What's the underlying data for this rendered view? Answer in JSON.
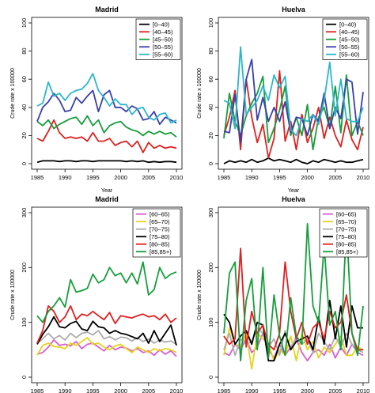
{
  "chart_data": [
    {
      "type": "line",
      "title": "Madrid",
      "xlabel": "Year",
      "ylabel": "Crude rate x 100000",
      "xlim": [
        1985,
        2010
      ],
      "ylim": [
        0,
        100
      ],
      "xticks": [
        "1985",
        "1990",
        "1995",
        "2000",
        "2005",
        "2010"
      ],
      "yticks": [
        "0",
        "20",
        "40",
        "60",
        "80",
        "100"
      ],
      "legend_position": "top-right",
      "x": [
        1985,
        1986,
        1987,
        1988,
        1989,
        1990,
        1991,
        1992,
        1993,
        1994,
        1995,
        1996,
        1997,
        1998,
        1999,
        2000,
        2001,
        2002,
        2003,
        2004,
        2005,
        2006,
        2007,
        2008,
        2009,
        2010
      ],
      "series": [
        {
          "name": "[0–40)",
          "color": "#000000",
          "values": [
            1,
            2,
            2,
            2,
            1.5,
            2,
            2,
            1.5,
            2,
            2,
            1.5,
            2,
            2,
            2,
            2,
            2,
            1.5,
            2,
            1.5,
            2,
            1,
            1.5,
            1,
            1.5,
            1.5,
            1
          ]
        },
        {
          "name": "[40–45)",
          "color": "#DF2020",
          "values": [
            18,
            16,
            23,
            31,
            22,
            18,
            19,
            18,
            19,
            16,
            22,
            16,
            16,
            18,
            13,
            15,
            16,
            12,
            16,
            8,
            15,
            11,
            13,
            11,
            12,
            11
          ]
        },
        {
          "name": "[45–50)",
          "color": "#169E3C",
          "values": [
            30,
            27,
            31,
            25,
            28,
            30,
            32,
            33,
            28,
            34,
            27,
            31,
            22,
            27,
            29,
            30,
            26,
            24,
            23,
            20,
            23,
            21,
            23,
            21,
            22,
            19
          ]
        },
        {
          "name": "[50–55)",
          "color": "#3A3FA8",
          "values": [
            30,
            40,
            44,
            50,
            45,
            37,
            38,
            47,
            43,
            48,
            52,
            37,
            49,
            52,
            40,
            40,
            37,
            41,
            39,
            31,
            32,
            37,
            28,
            33,
            31,
            29
          ]
        },
        {
          "name": "[55–60)",
          "color": "#2BB6CB",
          "values": [
            41,
            43,
            58,
            48,
            50,
            45,
            50,
            52,
            53,
            57,
            64,
            52,
            47,
            41,
            46,
            42,
            42,
            35,
            39,
            40,
            33,
            31,
            35,
            36,
            29,
            31
          ]
        }
      ]
    },
    {
      "type": "line",
      "title": "Huelva",
      "xlabel": "Year",
      "ylabel": "Crude rate x 100000",
      "xlim": [
        1985,
        2010
      ],
      "ylim": [
        0,
        100
      ],
      "xticks": [
        "1985",
        "1990",
        "1995",
        "2000",
        "2005",
        "2010"
      ],
      "yticks": [
        "0",
        "20",
        "40",
        "60",
        "80",
        "100"
      ],
      "legend_position": "top-right",
      "x": [
        1985,
        1986,
        1987,
        1988,
        1989,
        1990,
        1991,
        1992,
        1993,
        1994,
        1995,
        1996,
        1997,
        1998,
        1999,
        2000,
        2001,
        2002,
        2003,
        2004,
        2005,
        2006,
        2007,
        2008,
        2009,
        2010
      ],
      "series": [
        {
          "name": "[0–40)",
          "color": "#000000",
          "values": [
            0,
            2,
            1,
            2,
            1,
            3,
            1,
            2,
            4,
            2,
            3,
            2,
            1,
            3,
            1,
            0,
            2,
            1,
            3,
            2,
            1,
            2,
            1,
            1,
            2,
            3
          ]
        },
        {
          "name": "[40–45)",
          "color": "#DF2020",
          "values": [
            20,
            33,
            52,
            10,
            60,
            33,
            15,
            28,
            4,
            18,
            66,
            16,
            30,
            10,
            35,
            15,
            25,
            40,
            18,
            33,
            20,
            12,
            31,
            17,
            10,
            26
          ]
        },
        {
          "name": "[45–50)",
          "color": "#169E3C",
          "values": [
            18,
            50,
            30,
            20,
            34,
            43,
            50,
            62,
            15,
            25,
            38,
            55,
            20,
            33,
            20,
            42,
            10,
            33,
            40,
            25,
            55,
            22,
            63,
            20,
            30,
            20
          ]
        },
        {
          "name": "[50–55)",
          "color": "#3A3FA8",
          "values": [
            23,
            22,
            49,
            15,
            60,
            74,
            31,
            47,
            30,
            40,
            30,
            44,
            22,
            33,
            32,
            20,
            35,
            30,
            50,
            25,
            40,
            32,
            60,
            58,
            21,
            51
          ]
        },
        {
          "name": "[55–60)",
          "color": "#2BB6CB",
          "values": [
            45,
            43,
            25,
            83,
            35,
            40,
            45,
            55,
            45,
            63,
            54,
            62,
            24,
            20,
            32,
            30,
            35,
            28,
            45,
            72,
            34,
            60,
            32,
            30,
            30,
            40
          ]
        }
      ]
    },
    {
      "type": "line",
      "title": "Madrid",
      "xlabel": "Year",
      "ylabel": "Crude rate x 100000",
      "xlim": [
        1985,
        2010
      ],
      "ylim": [
        0,
        300
      ],
      "xticks": [
        "1985",
        "1990",
        "1995",
        "2000",
        "2005",
        "2010"
      ],
      "yticks": [
        "0",
        "100",
        "200",
        "300"
      ],
      "legend_position": "top-right",
      "x": [
        1985,
        1986,
        1987,
        1988,
        1989,
        1990,
        1991,
        1992,
        1993,
        1994,
        1995,
        1996,
        1997,
        1998,
        1999,
        2000,
        2001,
        2002,
        2003,
        2004,
        2005,
        2006,
        2007,
        2008,
        2009,
        2010
      ],
      "series": [
        {
          "name": "[60–65)",
          "color": "#D85FD0",
          "values": [
            42,
            45,
            55,
            68,
            58,
            60,
            57,
            65,
            52,
            60,
            62,
            55,
            48,
            58,
            50,
            55,
            53,
            48,
            52,
            45,
            48,
            40,
            50,
            42,
            48,
            38
          ]
        },
        {
          "name": "[65–70)",
          "color": "#E6D31B",
          "values": [
            40,
            58,
            62,
            56,
            55,
            52,
            62,
            58,
            65,
            72,
            60,
            62,
            55,
            50,
            57,
            60,
            52,
            45,
            55,
            50,
            45,
            52,
            48,
            52,
            50,
            45
          ]
        },
        {
          "name": "[70–75)",
          "color": "#ADADAD",
          "values": [
            62,
            70,
            80,
            70,
            76,
            68,
            80,
            72,
            80,
            82,
            77,
            85,
            70,
            74,
            68,
            73,
            72,
            66,
            72,
            65,
            70,
            62,
            68,
            64,
            66,
            60
          ]
        },
        {
          "name": "[75–80)",
          "color": "#000000",
          "values": [
            60,
            78,
            92,
            110,
            92,
            90,
            98,
            102,
            88,
            85,
            102,
            92,
            90,
            80,
            85,
            80,
            78,
            74,
            70,
            80,
            62,
            85,
            65,
            80,
            95,
            58
          ]
        },
        {
          "name": "[80–85)",
          "color": "#DF2020",
          "values": [
            62,
            85,
            130,
            120,
            100,
            110,
            130,
            105,
            115,
            112,
            120,
            112,
            105,
            118,
            98,
            112,
            110,
            108,
            112,
            115,
            110,
            112,
            105,
            115,
            100,
            108
          ]
        },
        {
          "name": "[85,85+)",
          "color": "#169E3C",
          "values": [
            112,
            100,
            120,
            130,
            145,
            128,
            178,
            155,
            158,
            162,
            188,
            172,
            178,
            200,
            185,
            190,
            172,
            190,
            170,
            210,
            150,
            160,
            200,
            180,
            188,
            192
          ]
        }
      ]
    },
    {
      "type": "line",
      "title": "Huelva",
      "xlabel": "Year",
      "ylabel": "Crude rate x 100000",
      "xlim": [
        1985,
        2010
      ],
      "ylim": [
        0,
        300
      ],
      "xticks": [
        "1985",
        "1990",
        "1995",
        "2000",
        "2005",
        "2010"
      ],
      "yticks": [
        "0",
        "100",
        "200",
        "300"
      ],
      "legend_position": "top-right",
      "x": [
        1985,
        1986,
        1987,
        1988,
        1989,
        1990,
        1991,
        1992,
        1993,
        1994,
        1995,
        1996,
        1997,
        1998,
        1999,
        2000,
        2001,
        2002,
        2003,
        2004,
        2005,
        2006,
        2007,
        2008,
        2009,
        2010
      ],
      "series": [
        {
          "name": "[60–65)",
          "color": "#D85FD0",
          "values": [
            45,
            40,
            60,
            50,
            70,
            45,
            55,
            80,
            50,
            35,
            60,
            40,
            55,
            70,
            45,
            30,
            45,
            50,
            40,
            60,
            35,
            55,
            40,
            60,
            45,
            40
          ]
        },
        {
          "name": "[65–70)",
          "color": "#E6D31B",
          "values": [
            40,
            90,
            60,
            55,
            80,
            15,
            80,
            70,
            60,
            30,
            50,
            40,
            75,
            30,
            80,
            50,
            65,
            35,
            55,
            45,
            60,
            75,
            40,
            40,
            55,
            50
          ]
        },
        {
          "name": "[70–75)",
          "color": "#ADADAD",
          "values": [
            50,
            80,
            40,
            70,
            60,
            65,
            90,
            80,
            55,
            70,
            40,
            85,
            50,
            75,
            60,
            70,
            45,
            80,
            65,
            50,
            75,
            55,
            80,
            60,
            50,
            45
          ]
        },
        {
          "name": "[75–80)",
          "color": "#000000",
          "values": [
            115,
            100,
            60,
            75,
            85,
            60,
            100,
            95,
            30,
            30,
            60,
            80,
            50,
            65,
            70,
            75,
            50,
            110,
            60,
            140,
            70,
            130,
            55,
            130,
            90,
            90
          ]
        },
        {
          "name": "[80–85)",
          "color": "#DF2020",
          "values": [
            75,
            60,
            70,
            235,
            55,
            120,
            80,
            95,
            60,
            50,
            80,
            210,
            120,
            70,
            100,
            60,
            90,
            100,
            70,
            120,
            90,
            100,
            150,
            80,
            50,
            50
          ]
        },
        {
          "name": "[85,85+)",
          "color": "#169E3C",
          "values": [
            80,
            190,
            210,
            30,
            140,
            180,
            50,
            200,
            35,
            150,
            75,
            40,
            145,
            75,
            60,
            280,
            130,
            100,
            240,
            95,
            120,
            50,
            280,
            80,
            40,
            130
          ]
        }
      ]
    }
  ]
}
